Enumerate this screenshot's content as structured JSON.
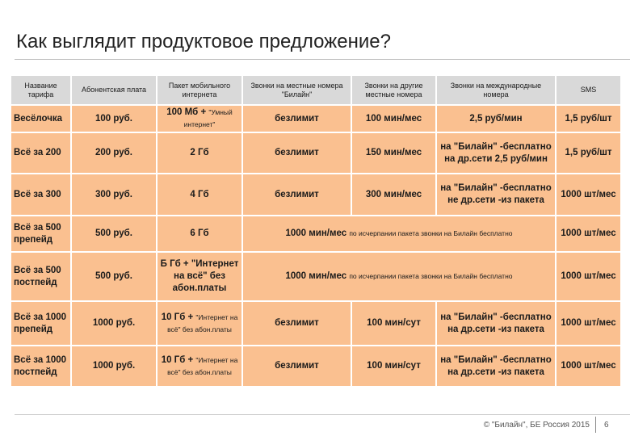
{
  "header": {
    "title": "Как выглядит продуктовое предложение?"
  },
  "table": {
    "columns": [
      "Название тарифа",
      "Абонентская плата",
      "Пакет мобильного интернета",
      "Звонки на местные номера \"Билайн\"",
      "Звонки на другие местные номера",
      "Звонки на международные номера",
      "SMS"
    ],
    "rows": [
      [
        "Весёлочка",
        "100 руб.",
        {
          "bold": "100 Мб + ",
          "small": "\"Умный интернет\""
        },
        "безлимит",
        "100 мин/мес",
        "2,5 руб/мин",
        "1,5 руб/шт"
      ],
      [
        "Всё за 200",
        "200 руб.",
        "2 Гб",
        "безлимит",
        "150 мин/мес",
        "на \"Билайн\" -бесплатно на др.сети 2,5 руб/мин",
        "1,5 руб/шт"
      ],
      [
        "Всё за 300",
        "300 руб.",
        "4 Гб",
        "безлимит",
        "300 мин/мес",
        "на \"Билайн\" -бесплатно не др.сети -из пакета",
        "1000 шт/мес"
      ],
      [
        "Всё за 500 препейд",
        "500 руб.",
        "6 Гб",
        {
          "bold": "1000 мин/мес ",
          "small": "по исчерпании пакета звонки на Билайн бесплатно"
        },
        "1000 шт/мес"
      ],
      [
        "Всё за 500 постпейд",
        "500 руб.",
        "Б Гб + \"Интернет на всё\" без абон.платы",
        {
          "bold": "1000 мин/мес ",
          "small": "по исчерпании пакета звонки на Билайн бесплатно"
        },
        "1000 шт/мес"
      ],
      [
        "Всё за 1000 препейд",
        "1000 руб.",
        {
          "bold": "10 Гб + ",
          "small": "\"Интернет на всё\" без абон.платы"
        },
        "безлимит",
        "100 мин/сут",
        "на \"Билайн\" -бесплатно на др.сети -из пакета",
        "1000 шт/мес"
      ],
      [
        "Всё за 1000 постпейд",
        "1000 руб.",
        {
          "bold": "10 Гб + ",
          "small": "\"Интернет на всё\" без абон.платы"
        },
        "безлимит",
        "100 мин/сут",
        "на \"Билайн\" -бесплатно на др.сети -из пакета",
        "1000 шт/мес"
      ]
    ]
  },
  "footer": {
    "copyright": "© \"Билайн\", БЕ Россия 2015",
    "page": "6"
  }
}
